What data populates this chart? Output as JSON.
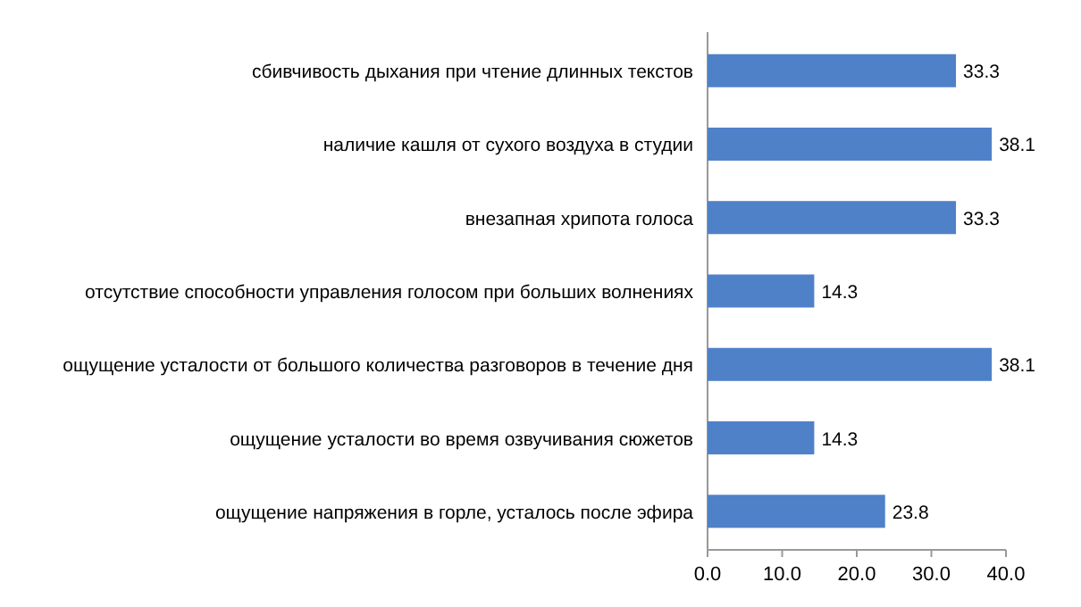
{
  "chart_data": {
    "type": "bar",
    "orientation": "horizontal",
    "categories": [
      "сбивчивость дыхания при чтение длинных текстов",
      "наличие кашля от сухого воздуха в студии",
      "внезапная хрипота голоса",
      "отсутствие способности управления голосом при больших волнениях",
      "ощущение усталости от большого количества разговоров в течение дня",
      "ощущение усталости во время озвучивания сюжетов",
      "ощущение напряжения в горле, усталось после эфира"
    ],
    "values": [
      33.3,
      38.1,
      33.3,
      14.3,
      38.1,
      14.3,
      23.8
    ],
    "color": "#4f81c9",
    "xlim": [
      0,
      40
    ],
    "xticks": [
      {
        "value": 0,
        "label": "0.0"
      },
      {
        "value": 10,
        "label": "10.0"
      },
      {
        "value": 20,
        "label": "20.0"
      },
      {
        "value": 30,
        "label": "30.0"
      },
      {
        "value": 40,
        "label": "40.0"
      }
    ],
    "data_labels": true
  }
}
